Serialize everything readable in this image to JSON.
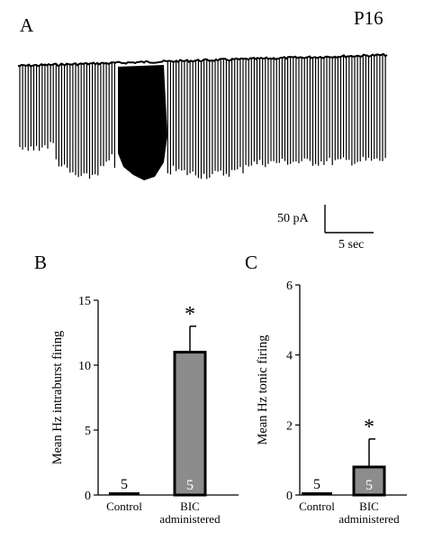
{
  "panel_a": {
    "letter": "A",
    "age": "P16",
    "scalebar": {
      "current_label": "50 pA",
      "time_label": "5 sec"
    }
  },
  "chart_data": [
    {
      "panel": "B",
      "type": "bar",
      "ylabel": "Mean Hz intraburst firing",
      "ylim": [
        0,
        15
      ],
      "yticks": [
        0,
        5,
        10,
        15
      ],
      "categories": [
        [
          "Control"
        ],
        [
          "BIC",
          "administered"
        ]
      ],
      "values": [
        0,
        11
      ],
      "errors": [
        0,
        2
      ],
      "n": [
        "5",
        "5"
      ],
      "significance": [
        "",
        "*"
      ],
      "bar_colors": [
        "#000000",
        "#8c8c8c"
      ]
    },
    {
      "panel": "C",
      "type": "bar",
      "ylabel": "Mean Hz tonic firing",
      "ylim": [
        0,
        6
      ],
      "yticks": [
        0,
        2,
        4,
        6
      ],
      "categories": [
        [
          "Control"
        ],
        [
          "BIC",
          "administered"
        ]
      ],
      "values": [
        0,
        0.8
      ],
      "errors": [
        0,
        0.8
      ],
      "n": [
        "5",
        "5"
      ],
      "significance": [
        "",
        "*"
      ],
      "bar_colors": [
        "#000000",
        "#8c8c8c"
      ]
    }
  ]
}
